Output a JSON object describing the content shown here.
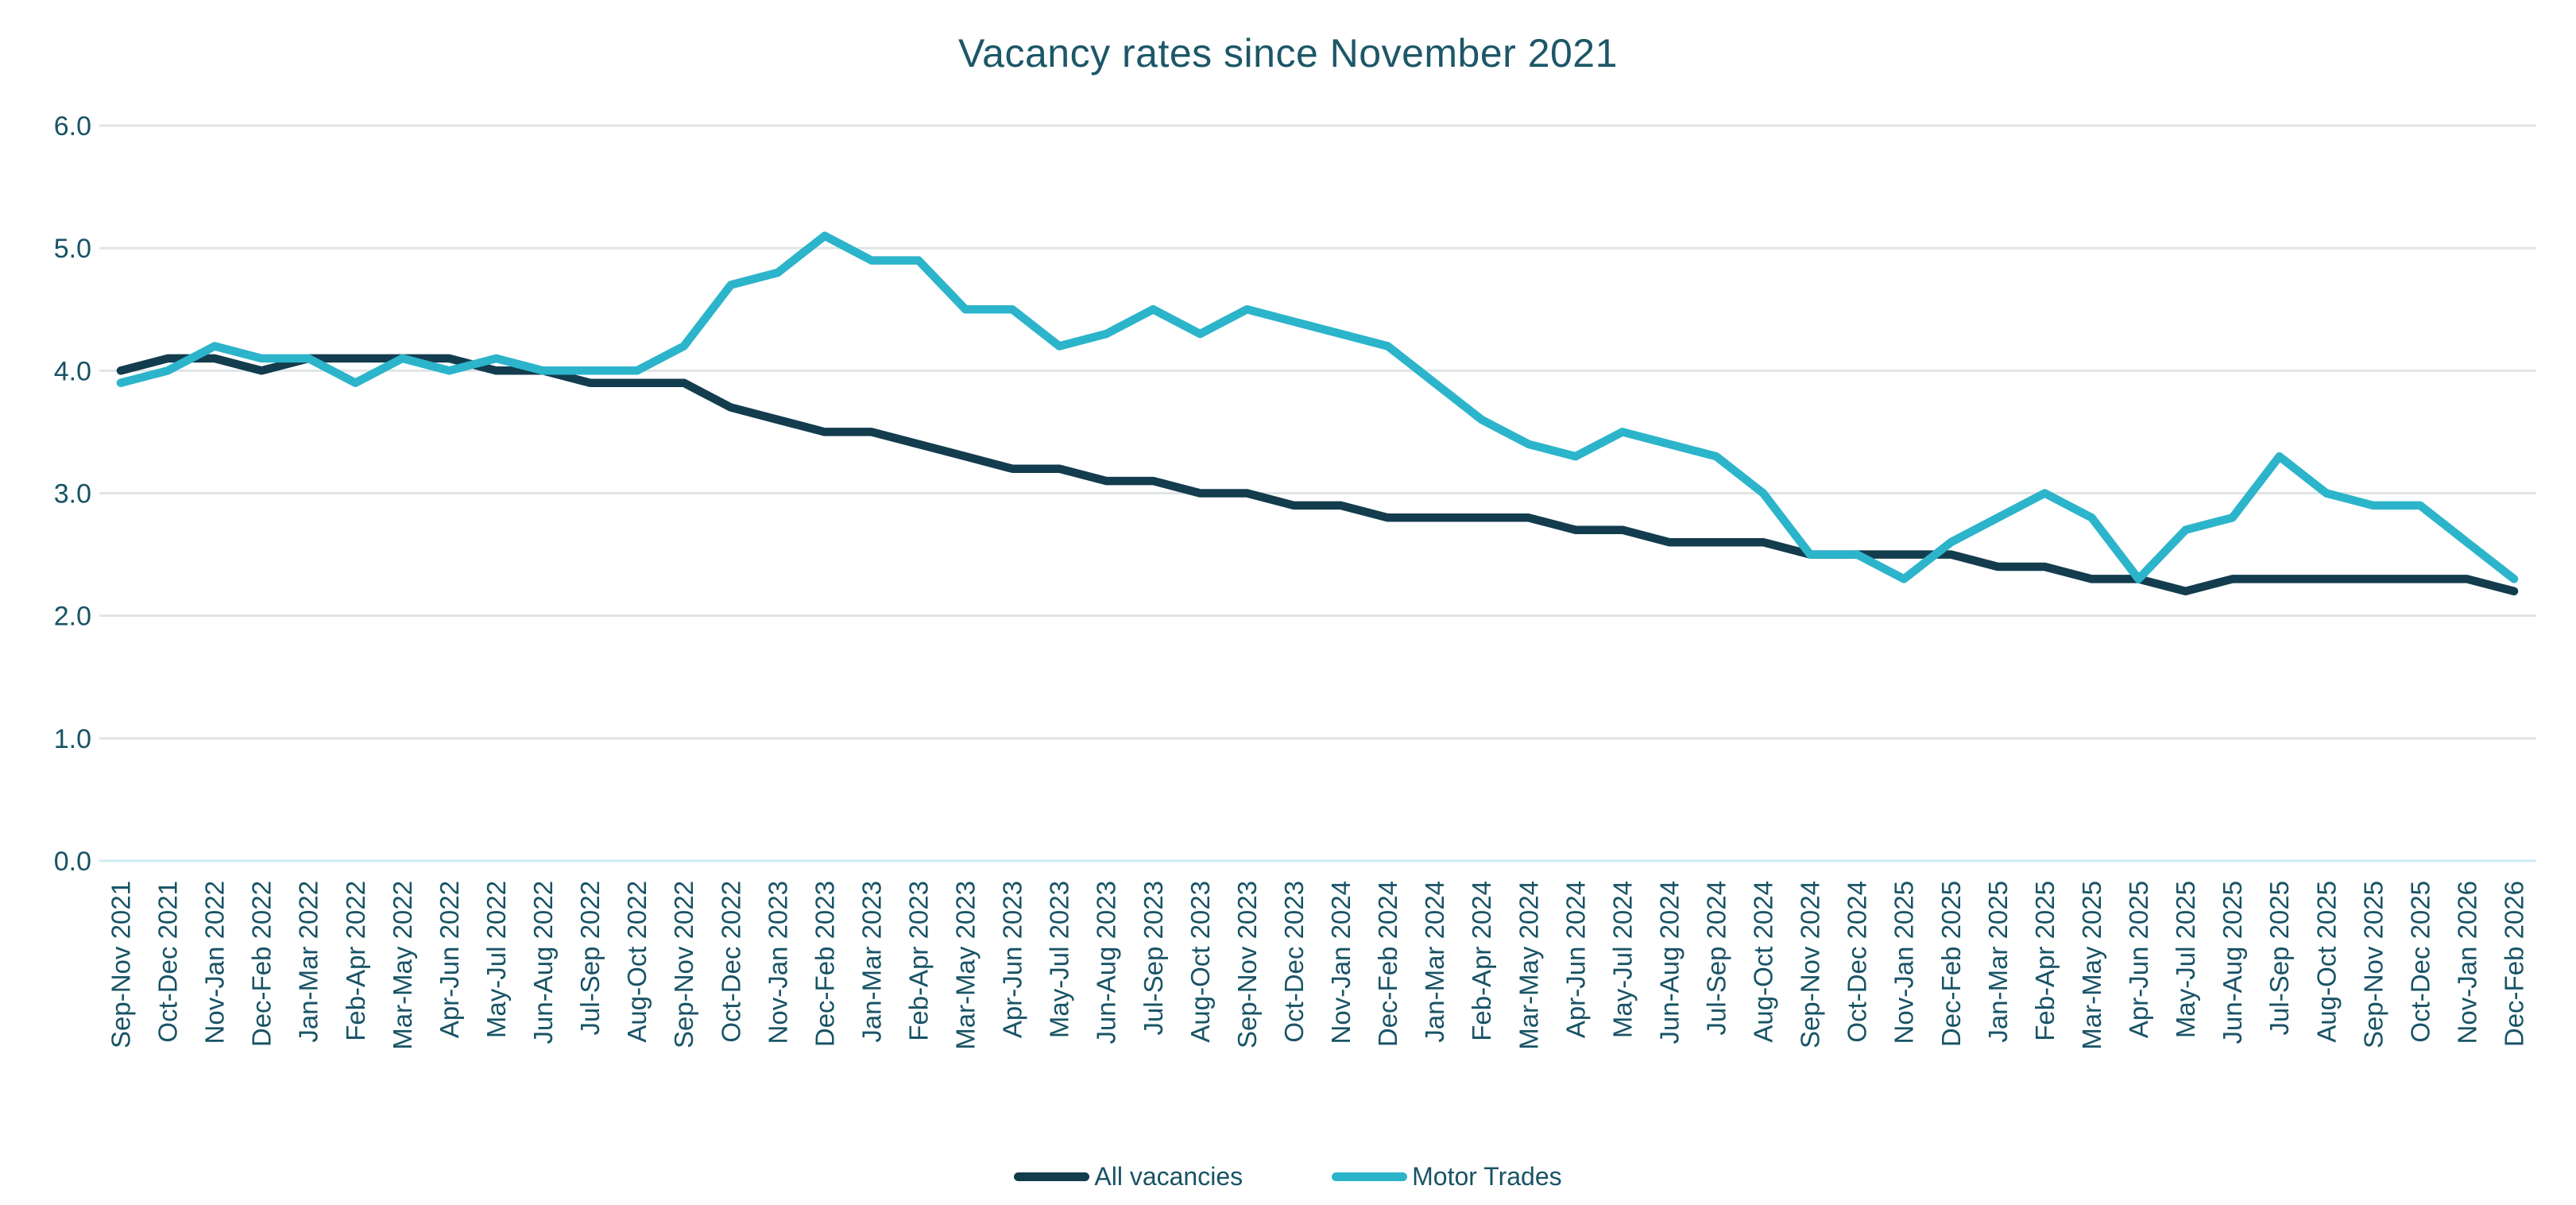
{
  "chart_data": {
    "type": "line",
    "title": "Vacancy rates since November 2021",
    "xlabel": "",
    "ylabel": "",
    "ylim": [
      0,
      6
    ],
    "yticks": [
      0,
      1,
      2,
      3,
      4,
      5,
      6
    ],
    "ytick_labels": [
      "0.0",
      "1.0",
      "2.0",
      "3.0",
      "4.0",
      "5.0",
      "6.0"
    ],
    "grid": "on",
    "legend_position": "bottom-center",
    "categories": [
      "Sep-Nov 2021",
      "Oct-Dec 2021",
      "Nov-Jan 2022",
      "Dec-Feb 2022",
      "Jan-Mar 2022",
      "Feb-Apr 2022",
      "Mar-May 2022",
      "Apr-Jun 2022",
      "May-Jul 2022",
      "Jun-Aug 2022",
      "Jul-Sep 2022",
      "Aug-Oct 2022",
      "Sep-Nov 2022",
      "Oct-Dec 2022",
      "Nov-Jan 2023",
      "Dec-Feb 2023",
      "Jan-Mar 2023",
      "Feb-Apr 2023",
      "Mar-May 2023",
      "Apr-Jun 2023",
      "May-Jul 2023",
      "Jun-Aug 2023",
      "Jul-Sep 2023",
      "Aug-Oct 2023",
      "Sep-Nov 2023",
      "Oct-Dec 2023",
      "Nov-Jan 2024",
      "Dec-Feb 2024",
      "Jan-Mar 2024",
      "Feb-Apr 2024",
      "Mar-May 2024",
      "Apr-Jun 2024",
      "May-Jul 2024",
      "Jun-Aug 2024",
      "Jul-Sep 2024",
      "Aug-Oct 2024",
      "Sep-Nov 2024",
      "Oct-Dec 2024",
      "Nov-Jan 2025",
      "Dec-Feb 2025",
      "Jan-Mar 2025",
      "Feb-Apr 2025",
      "Mar-May 2025",
      "Apr-Jun 2025",
      "May-Jul 2025",
      "Jun-Aug 2025",
      "Jul-Sep 2025",
      "Aug-Oct 2025",
      "Sep-Nov 2025",
      "Oct-Dec 2025",
      "Nov-Jan 2026",
      "Dec-Feb 2026"
    ],
    "series": [
      {
        "name": "All vacancies",
        "color": "#133c4e",
        "values": [
          4.0,
          4.1,
          4.1,
          4.0,
          4.1,
          4.1,
          4.1,
          4.1,
          4.0,
          4.0,
          3.9,
          3.9,
          3.9,
          3.7,
          3.6,
          3.5,
          3.5,
          3.4,
          3.3,
          3.2,
          3.2,
          3.1,
          3.1,
          3.0,
          3.0,
          2.9,
          2.9,
          2.8,
          2.8,
          2.8,
          2.8,
          2.7,
          2.7,
          2.6,
          2.6,
          2.6,
          2.5,
          2.5,
          2.5,
          2.5,
          2.4,
          2.4,
          2.3,
          2.3,
          2.2,
          2.3,
          2.3,
          2.3,
          2.3,
          2.3,
          2.3,
          2.2
        ]
      },
      {
        "name": "Motor Trades",
        "color": "#2cb4cb",
        "values": [
          3.9,
          4.0,
          4.2,
          4.1,
          4.1,
          3.9,
          4.1,
          4.0,
          4.1,
          4.0,
          4.0,
          4.0,
          4.2,
          4.7,
          4.8,
          5.1,
          4.9,
          4.9,
          4.5,
          4.5,
          4.2,
          4.3,
          4.5,
          4.3,
          4.5,
          4.4,
          4.3,
          4.2,
          3.9,
          3.6,
          3.4,
          3.3,
          3.5,
          3.4,
          3.3,
          3.0,
          2.5,
          2.5,
          2.3,
          2.6,
          2.8,
          3.0,
          2.8,
          2.3,
          2.7,
          2.8,
          3.3,
          3.0,
          2.9,
          2.9,
          2.6,
          2.3
        ]
      }
    ],
    "colors": {
      "grid": "#e0e4e6",
      "zero_gridline": "#cfeef6",
      "axis_text": "#185365",
      "title_text": "#1c5767",
      "background": "#ffffff"
    }
  }
}
